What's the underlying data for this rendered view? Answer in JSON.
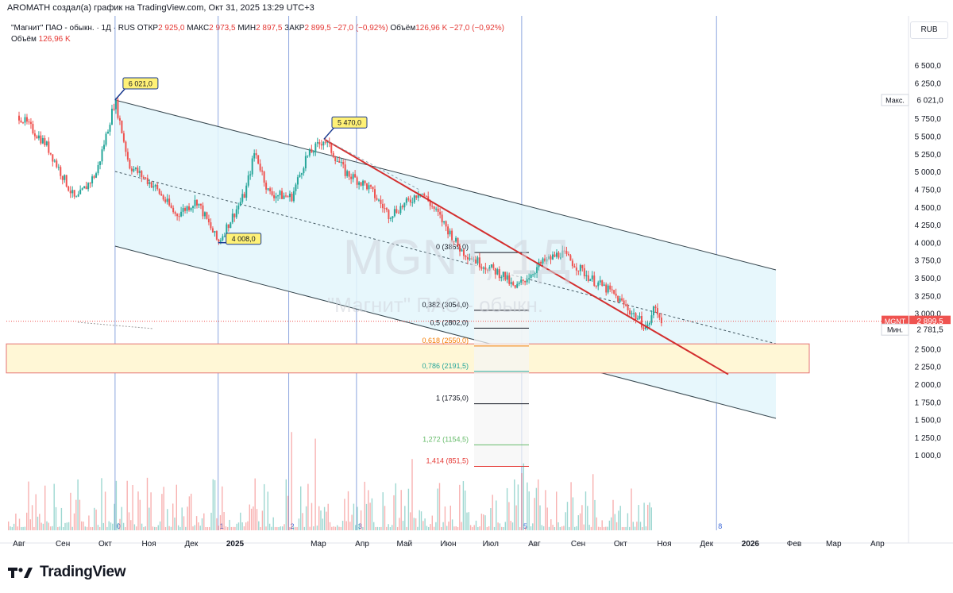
{
  "header": {
    "attribution": "AROMATH создал(а) график на TradingView.com, Окт 31, 2025 13:29 UTC+3"
  },
  "legend": {
    "symbol": "\"Магнит\" ПАО - обыкн. · 1Д · RUS",
    "open_label": "ОТКР",
    "open": "2 925,0",
    "high_label": "МАКС",
    "high": "2 973,5",
    "low_label": "МИН",
    "low": "2 897,5",
    "close_label": "ЗАКР",
    "close": "2 899,5",
    "change": "−27,0 (−0,92%)",
    "volume_label": "Объём",
    "volume": "126,96 K",
    "volume_change": "−27,0 (−0,92%)",
    "volume_row_label": "Объём",
    "volume_row_value": "126,96 K"
  },
  "currency": "RUB",
  "watermark": {
    "ticker": "MGNT, 1Д",
    "name": "\"Магнит\" ПАО - обыкн."
  },
  "footer": {
    "brand": "TradingView"
  },
  "colors": {
    "channel_fill": "#e3f6fb",
    "zone_fill": "#fff7d6",
    "zone_border": "#e57373",
    "trendline": "#d32f2f",
    "vline": "#6f8fd6",
    "up": "#26a69a",
    "down": "#ef5350",
    "label_fill": "#fff176",
    "price_tag": "#ef5350"
  },
  "chart_data": {
    "type": "candlestick",
    "title": "\"Магнит\" ПАО - обыкн. · 1Д · RUS",
    "ylim": [
      500,
      6850
    ],
    "y_ticks": [
      "6 500,0",
      "6 250,0",
      "6 000,0",
      "5 750,0",
      "5 500,0",
      "5 250,0",
      "5 000,0",
      "4 750,0",
      "4 500,0",
      "4 250,0",
      "4 000,0",
      "3 750,0",
      "3 500,0",
      "3 250,0",
      "3 000,0",
      "2 750,0",
      "2 500,0",
      "2 250,0",
      "2 000,0",
      "1 750,0",
      "1 500,0",
      "1 250,0",
      "1 000,0"
    ],
    "y_tick_values": [
      6500,
      6250,
      6000,
      5750,
      5500,
      5250,
      5000,
      4750,
      4500,
      4250,
      4000,
      3750,
      3500,
      3250,
      3000,
      2750,
      2500,
      2250,
      2000,
      1750,
      1500,
      1250,
      1000
    ],
    "x_labels": [
      "Авг",
      "Сен",
      "Окт",
      "Ноя",
      "Дек",
      "2025",
      "Мар",
      "Апр",
      "Май",
      "Июн",
      "Июл",
      "Авг",
      "Сен",
      "Окт",
      "Ноя",
      "Дек",
      "2026",
      "Фев",
      "Мар",
      "Апр"
    ],
    "x_label_dates": [
      "2024-08",
      "2024-09",
      "2024-10",
      "2024-11",
      "2024-12",
      "2025-01",
      "2025-03",
      "2025-04",
      "2025-05",
      "2025-06",
      "2025-07",
      "2025-08",
      "2025-09",
      "2025-10",
      "2025-11",
      "2025-12",
      "2026-01",
      "2026-02",
      "2026-03",
      "2026-04"
    ],
    "price_path": [
      [
        "2024-08-01",
        5800
      ],
      [
        "2024-08-20",
        5400
      ],
      [
        "2024-09-10",
        4600
      ],
      [
        "2024-09-25",
        5000
      ],
      [
        "2024-10-08",
        6021
      ],
      [
        "2024-10-18",
        5100
      ],
      [
        "2024-11-05",
        4800
      ],
      [
        "2024-11-20",
        4400
      ],
      [
        "2024-12-05",
        4600
      ],
      [
        "2024-12-20",
        4008
      ],
      [
        "2025-01-08",
        4700
      ],
      [
        "2025-01-15",
        5300
      ],
      [
        "2025-01-25",
        4700
      ],
      [
        "2025-02-10",
        4650
      ],
      [
        "2025-02-20",
        5200
      ],
      [
        "2025-03-05",
        5470
      ],
      [
        "2025-03-20",
        5000
      ],
      [
        "2025-04-05",
        4800
      ],
      [
        "2025-04-20",
        4400
      ],
      [
        "2025-05-05",
        4600
      ],
      [
        "2025-05-12",
        4750
      ],
      [
        "2025-05-25",
        4400
      ],
      [
        "2025-06-10",
        3900
      ],
      [
        "2025-06-25",
        3700
      ],
      [
        "2025-07-10",
        3550
      ],
      [
        "2025-07-18",
        3350
      ],
      [
        "2025-08-05",
        3700
      ],
      [
        "2025-08-20",
        3869
      ],
      [
        "2025-09-10",
        3500
      ],
      [
        "2025-09-25",
        3300
      ],
      [
        "2025-10-10",
        3000
      ],
      [
        "2025-10-20",
        2800
      ],
      [
        "2025-10-25",
        3100
      ],
      [
        "2025-10-31",
        2899.5
      ]
    ],
    "pivots": [
      {
        "label": "6 021,0",
        "value": 6021.0
      },
      {
        "label": "5 470,0",
        "value": 5470.0
      },
      {
        "label": "4 008,0",
        "value": 4008.0
      }
    ],
    "fib_levels": [
      {
        "ratio": "0",
        "label": "0 (3869,0)",
        "value": 3869.0,
        "color": "#131722"
      },
      {
        "ratio": "0,382",
        "label": "0,382 (3054,0)",
        "value": 3054.0,
        "color": "#131722"
      },
      {
        "ratio": "0,5",
        "label": "0,5 (2802,0)",
        "value": 2802.0,
        "color": "#131722"
      },
      {
        "ratio": "0,618",
        "label": "0,618 (2550,0)",
        "value": 2550.0,
        "color": "#f57c00"
      },
      {
        "ratio": "0,786",
        "label": "0,786 (2191,5)",
        "value": 2191.5,
        "color": "#26a69a"
      },
      {
        "ratio": "1",
        "label": "1 (1735,0)",
        "value": 1735.0,
        "color": "#131722"
      },
      {
        "ratio": "1,272",
        "label": "1,272 (1154,5)",
        "value": 1154.5,
        "color": "#66bb6a"
      },
      {
        "ratio": "1,414",
        "label": "1,414 (851,5)",
        "value": 851.5,
        "color": "#e53935"
      }
    ],
    "cycle_numbers": [
      "0",
      "1",
      "2",
      "3",
      "5",
      "8"
    ],
    "price_labels": [
      {
        "text": "Макс.",
        "value_text": "6 021,0",
        "value": 6021.0,
        "kind": "max"
      },
      {
        "text": "MGNT",
        "value_text": "2 899,5",
        "value": 2899.5,
        "kind": "last"
      },
      {
        "text": "Мин.",
        "value_text": "2 781,5",
        "value": 2781.5,
        "kind": "min"
      }
    ],
    "support_zone": [
      2170,
      2580
    ]
  }
}
